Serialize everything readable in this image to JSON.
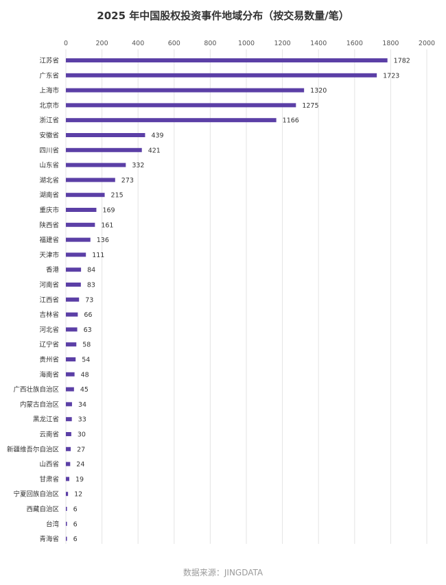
{
  "title": "2025 年中国股权投资事件地域分布（按交易数量/笔）",
  "source": "数据来源：JINGDATA",
  "colors": {
    "bar": "#5B3FA6",
    "grid": "#e3e3e3",
    "text": "#333333"
  },
  "chart_data": {
    "type": "bar",
    "orientation": "horizontal",
    "title": "2025 年中国股权投资事件地域分布（按交易数量/笔）",
    "xlim": [
      0,
      2000
    ],
    "xticks": [
      0,
      200,
      400,
      600,
      800,
      1000,
      1200,
      1400,
      1600,
      1800,
      2000
    ],
    "grid": true,
    "categories": [
      "江苏省",
      "广东省",
      "上海市",
      "北京市",
      "浙江省",
      "安徽省",
      "四川省",
      "山东省",
      "湖北省",
      "湖南省",
      "重庆市",
      "陕西省",
      "福建省",
      "天津市",
      "香港",
      "河南省",
      "江西省",
      "吉林省",
      "河北省",
      "辽宁省",
      "贵州省",
      "海南省",
      "广西壮族自治区",
      "内蒙古自治区",
      "黑龙江省",
      "云南省",
      "新疆维吾尔自治区",
      "山西省",
      "甘肃省",
      "宁夏回族自治区",
      "西藏自治区",
      "台湾",
      "青海省"
    ],
    "values": [
      1782,
      1723,
      1320,
      1275,
      1166,
      439,
      421,
      332,
      273,
      215,
      169,
      161,
      136,
      111,
      84,
      83,
      73,
      66,
      63,
      58,
      54,
      48,
      45,
      34,
      33,
      30,
      27,
      24,
      19,
      12,
      6,
      6,
      6
    ]
  }
}
